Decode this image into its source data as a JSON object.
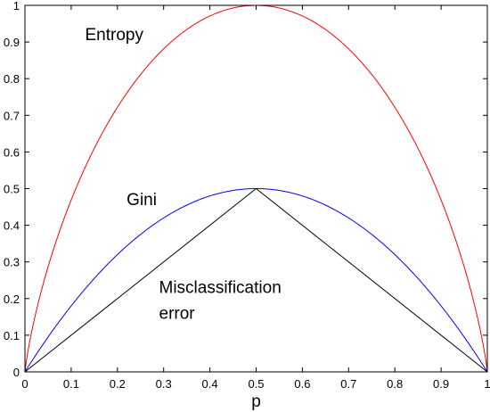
{
  "chart_data": {
    "type": "line",
    "title": "",
    "xlabel": "p",
    "ylabel": "",
    "xlim": [
      0,
      1
    ],
    "ylim": [
      0,
      1
    ],
    "x_ticks": [
      "0",
      "0.1",
      "0.2",
      "0.3",
      "0.4",
      "0.5",
      "0.6",
      "0.7",
      "0.8",
      "0.9",
      "1"
    ],
    "y_ticks": [
      "0",
      "0.1",
      "0.2",
      "0.3",
      "0.4",
      "0.5",
      "0.6",
      "0.7",
      "0.8",
      "0.9",
      "1"
    ],
    "grid": false,
    "series": [
      {
        "name": "Entropy",
        "color": "#ff0000",
        "x": [
          0,
          0.05,
          0.1,
          0.15,
          0.2,
          0.25,
          0.3,
          0.35,
          0.4,
          0.45,
          0.5,
          0.55,
          0.6,
          0.65,
          0.7,
          0.75,
          0.8,
          0.85,
          0.9,
          0.95,
          1
        ],
        "y": [
          0,
          0.286,
          0.469,
          0.61,
          0.722,
          0.811,
          0.881,
          0.934,
          0.971,
          0.993,
          1.0,
          0.993,
          0.971,
          0.934,
          0.881,
          0.811,
          0.722,
          0.61,
          0.469,
          0.286,
          0
        ]
      },
      {
        "name": "Gini",
        "color": "#0000ff",
        "x": [
          0,
          0.05,
          0.1,
          0.15,
          0.2,
          0.25,
          0.3,
          0.35,
          0.4,
          0.45,
          0.5,
          0.55,
          0.6,
          0.65,
          0.7,
          0.75,
          0.8,
          0.85,
          0.9,
          0.95,
          1
        ],
        "y": [
          0,
          0.095,
          0.18,
          0.255,
          0.32,
          0.375,
          0.42,
          0.455,
          0.48,
          0.495,
          0.5,
          0.495,
          0.48,
          0.455,
          0.42,
          0.375,
          0.32,
          0.255,
          0.18,
          0.095,
          0
        ]
      },
      {
        "name": "Misclassification error",
        "color": "#000000",
        "x": [
          0,
          0.5,
          1
        ],
        "y": [
          0,
          0.5,
          0
        ]
      }
    ],
    "annotations": [
      {
        "text": "Entropy",
        "x": 0.13,
        "y": 0.905
      },
      {
        "text": "Gini",
        "x": 0.22,
        "y": 0.455
      },
      {
        "text": "Misclassification",
        "x": 0.29,
        "y": 0.215
      },
      {
        "text": "error",
        "x": 0.29,
        "y": 0.145
      }
    ]
  }
}
